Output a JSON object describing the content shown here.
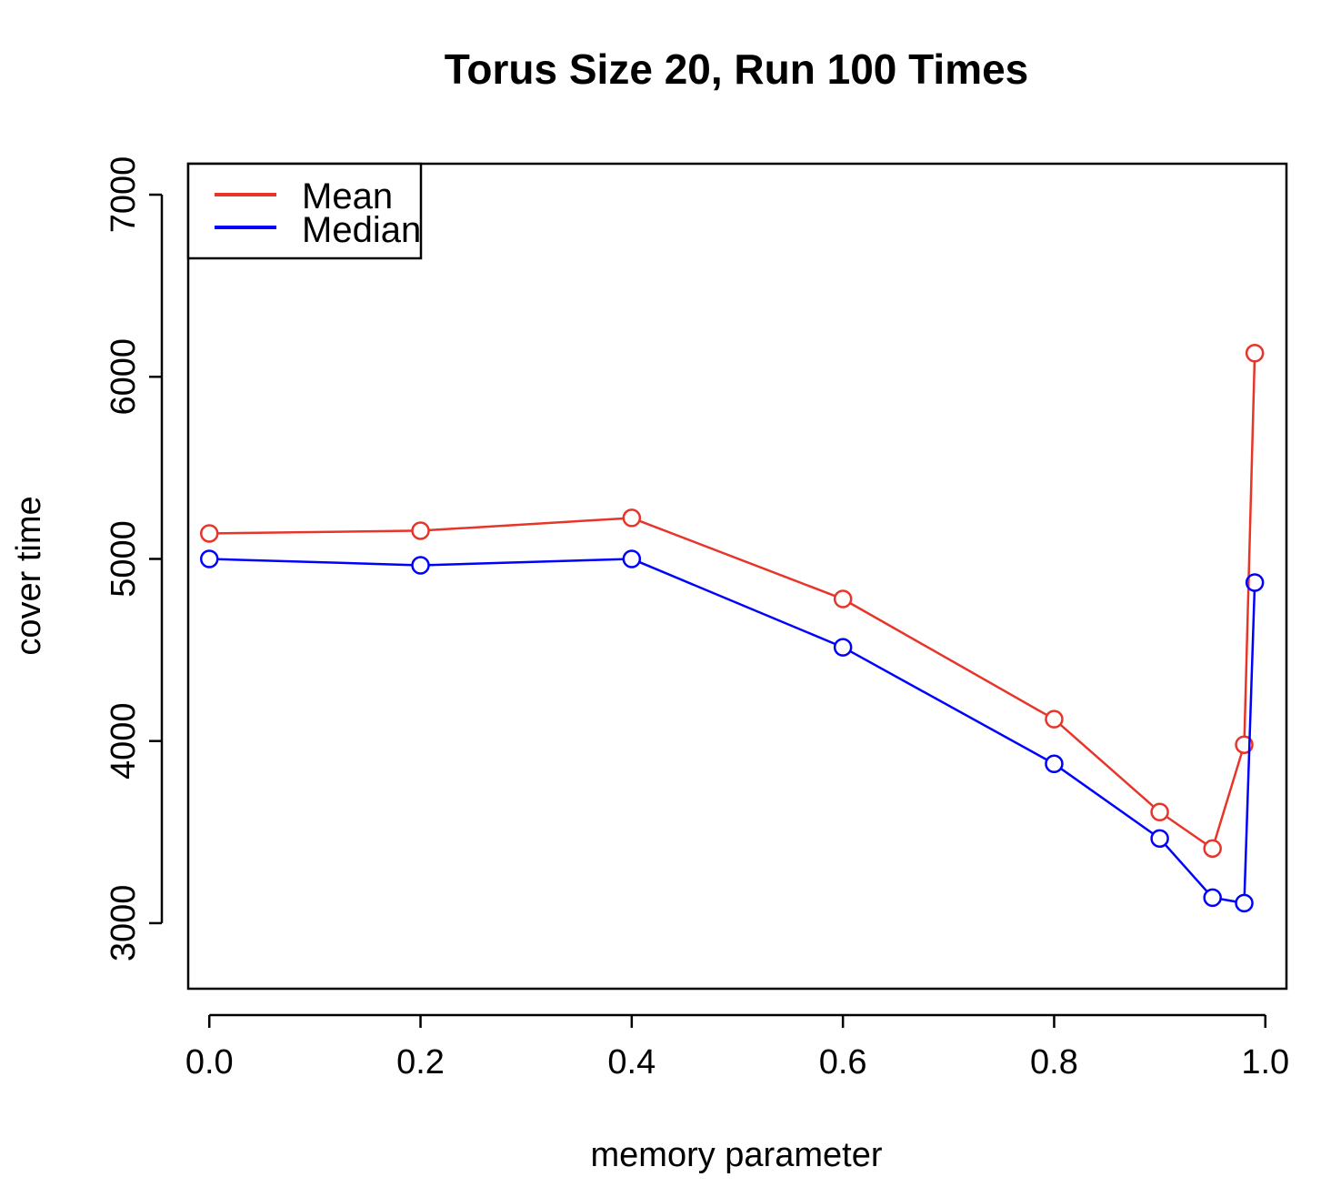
{
  "chart_data": {
    "type": "line",
    "title": "Torus Size 20, Run 100 Times",
    "xlabel": "memory parameter",
    "ylabel": "cover time",
    "xlim": [
      -0.02,
      1.02
    ],
    "ylim": [
      2640,
      7170
    ],
    "x_ticks": [
      0.0,
      0.2,
      0.4,
      0.6,
      0.8,
      1.0
    ],
    "x_tick_labels": [
      "0.0",
      "0.2",
      "0.4",
      "0.6",
      "0.8",
      "1.0"
    ],
    "y_ticks": [
      3000,
      4000,
      5000,
      6000,
      7000
    ],
    "y_tick_labels": [
      "3000",
      "4000",
      "5000",
      "6000",
      "7000"
    ],
    "grid": false,
    "legend_position": "top-left",
    "x": [
      0.0,
      0.2,
      0.4,
      0.6,
      0.8,
      0.9,
      0.95,
      0.98,
      0.99
    ],
    "series": [
      {
        "name": "Mean",
        "color": "#e8352a",
        "values": [
          5140,
          5155,
          5225,
          4780,
          4120,
          3610,
          3410,
          3980,
          6130
        ]
      },
      {
        "name": "Median",
        "color": "#0000ff",
        "values": [
          5000,
          4965,
          5000,
          4515,
          3875,
          3465,
          3140,
          3110,
          4870
        ]
      }
    ]
  }
}
